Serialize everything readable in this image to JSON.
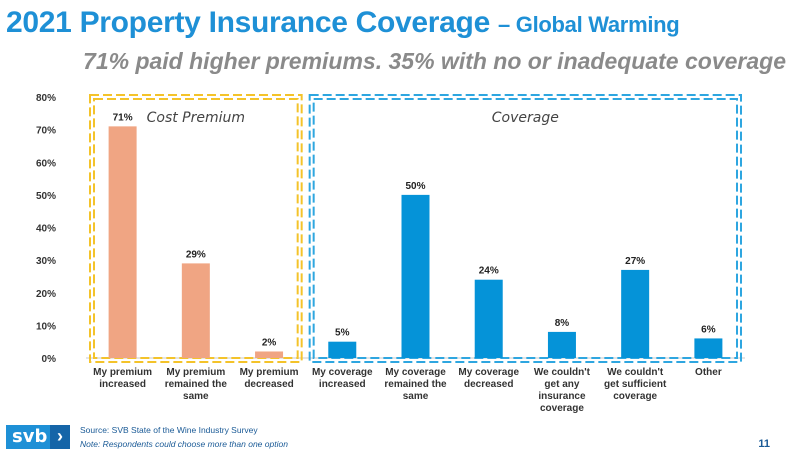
{
  "header": {
    "title": "2021 Property Insurance Coverage",
    "title_suffix": "– Global Warming",
    "subtitle": "71% paid higher premiums. 35% with no or inadequate coverage"
  },
  "colors": {
    "title": "#1e90d6",
    "premium_bar": "#f0a583",
    "coverage_bar": "#0593d8",
    "premium_box": "#f4c32a",
    "coverage_box": "#2ea6e0"
  },
  "chart_data": {
    "type": "bar",
    "ylim": [
      0,
      80
    ],
    "yticks": [
      "0%",
      "10%",
      "20%",
      "30%",
      "40%",
      "50%",
      "60%",
      "70%",
      "80%"
    ],
    "groups": [
      {
        "name": "Cost Premium",
        "start": 0,
        "end": 2
      },
      {
        "name": "Coverage",
        "start": 3,
        "end": 8
      }
    ],
    "categories": [
      [
        "My premium",
        "increased"
      ],
      [
        "My premium",
        "remained the",
        "same"
      ],
      [
        "My premium",
        "decreased"
      ],
      [
        "My coverage",
        "increased"
      ],
      [
        "My coverage",
        "remained the",
        "same"
      ],
      [
        "My coverage",
        "decreased"
      ],
      [
        "We couldn't",
        "get any",
        "insurance",
        "coverage"
      ],
      [
        "We couldn't",
        "get sufficient",
        "coverage"
      ],
      [
        "Other"
      ]
    ],
    "values": [
      71,
      29,
      2,
      5,
      50,
      24,
      8,
      27,
      6
    ],
    "labels": [
      "71%",
      "29%",
      "2%",
      "5%",
      "50%",
      "24%",
      "8%",
      "27%",
      "6%"
    ],
    "series_group": [
      "premium",
      "premium",
      "premium",
      "coverage",
      "coverage",
      "coverage",
      "coverage",
      "coverage",
      "coverage"
    ]
  },
  "footer": {
    "logo": "svb",
    "logo_chevron": "›",
    "source": "Source: SVB State of the Wine Industry Survey",
    "note": "Note: Respondents could choose more than one option",
    "page": "11"
  }
}
